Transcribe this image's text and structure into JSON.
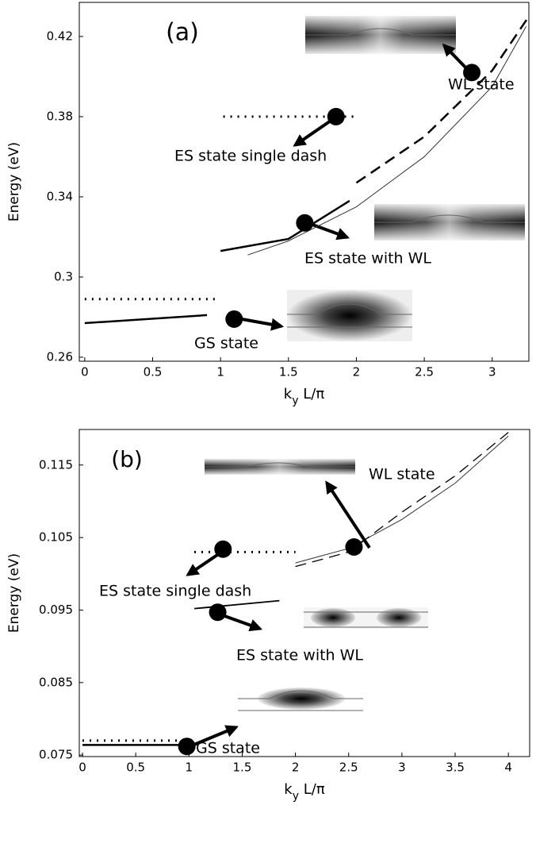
{
  "chart_data": [
    {
      "type": "line",
      "panel_label": "(a)",
      "ylabel": "Energy (eV)",
      "xlabel": [
        "k",
        "y",
        " L/π"
      ],
      "xlim": [
        -0.04,
        3.27
      ],
      "ylim": [
        0.258,
        0.437
      ],
      "xticks": [
        0,
        0.5,
        1,
        1.5,
        2,
        2.5,
        3
      ],
      "yticks": [
        {
          "value": 0.26,
          "label": "0.26"
        },
        0.3,
        0.34,
        0.38,
        0.42
      ],
      "series": [
        {
          "style": "solid",
          "width": 1,
          "color": "#333333",
          "x": [
            1.2,
            1.5,
            2,
            2.5,
            3,
            3.25
          ],
          "values": [
            0.311,
            0.318,
            0.335,
            0.36,
            0.395,
            0.425
          ]
        },
        {
          "style": "solid",
          "width": 2.5,
          "color": "#000000",
          "x": [
            1,
            1.5,
            1.95
          ],
          "values": [
            0.313,
            0.319,
            0.338
          ]
        },
        {
          "style": "dashed",
          "width": 2.5,
          "color": "#000000",
          "x": [
            2,
            2.5,
            3,
            3.27
          ],
          "values": [
            0.347,
            0.37,
            0.403,
            0.43
          ]
        },
        {
          "style": "dotted",
          "width": 3,
          "color": "#000000",
          "x": [
            1.02,
            1.98
          ],
          "values": [
            0.38,
            0.38
          ]
        },
        {
          "style": "dotted",
          "width": 3,
          "color": "#000000",
          "x": [
            0,
            0.98
          ],
          "values": [
            0.289,
            0.289
          ]
        },
        {
          "style": "solid",
          "width": 2.5,
          "color": "#000000",
          "x": [
            0,
            0.9
          ],
          "values": [
            0.277,
            0.281
          ]
        }
      ],
      "points": {
        "color": "#000000",
        "x": [
          1.1,
          1.62,
          1.85,
          2.85
        ],
        "values": [
          0.279,
          0.327,
          0.38,
          0.402
        ]
      },
      "annotations": [
        "WL state",
        "ES state single dash",
        "ES state with WL",
        "GS state"
      ]
    },
    {
      "type": "line",
      "panel_label": "(b)",
      "ylabel": "Energy (eV)",
      "xlabel": [
        "k",
        "y",
        " L/π"
      ],
      "xlim": [
        -0.03,
        4.2
      ],
      "ylim": [
        0.0748,
        0.1199
      ],
      "xticks": [
        0,
        0.5,
        1,
        1.5,
        2,
        2.5,
        3,
        3.5,
        4
      ],
      "yticks": [
        0.075,
        0.085,
        0.095,
        0.105,
        0.115
      ],
      "series": [
        {
          "style": "solid",
          "width": 1,
          "color": "#333333",
          "x": [
            2,
            2.5,
            3,
            3.5,
            4
          ],
          "values": [
            0.1015,
            0.1035,
            0.1075,
            0.1125,
            0.119
          ]
        },
        {
          "style": "dashed",
          "width": 1.3,
          "color": "#000000",
          "x": [
            2,
            2.5,
            3,
            3.5,
            4
          ],
          "values": [
            0.101,
            0.103,
            0.1085,
            0.1135,
            0.1195
          ]
        },
        {
          "style": "dotted",
          "width": 3,
          "color": "#000000",
          "x": [
            1.05,
            2
          ],
          "values": [
            0.103,
            0.103
          ]
        },
        {
          "style": "solid",
          "width": 1.8,
          "color": "#000000",
          "x": [
            1.05,
            1.85
          ],
          "values": [
            0.0952,
            0.0963
          ]
        },
        {
          "style": "dotted",
          "width": 3,
          "color": "#000000",
          "x": [
            0,
            0.98
          ],
          "values": [
            0.077,
            0.077
          ]
        },
        {
          "style": "solid",
          "width": 2.5,
          "color": "#000000",
          "x": [
            0,
            1
          ],
          "values": [
            0.0764,
            0.0764
          ]
        }
      ],
      "points": {
        "color": "#000000",
        "x": [
          0.98,
          1.27,
          1.32,
          2.55
        ],
        "values": [
          0.0762,
          0.0947,
          0.1034,
          0.1037
        ]
      },
      "annotations": [
        "WL state",
        "ES state single dash",
        "ES state with WL",
        "GS state"
      ]
    }
  ]
}
